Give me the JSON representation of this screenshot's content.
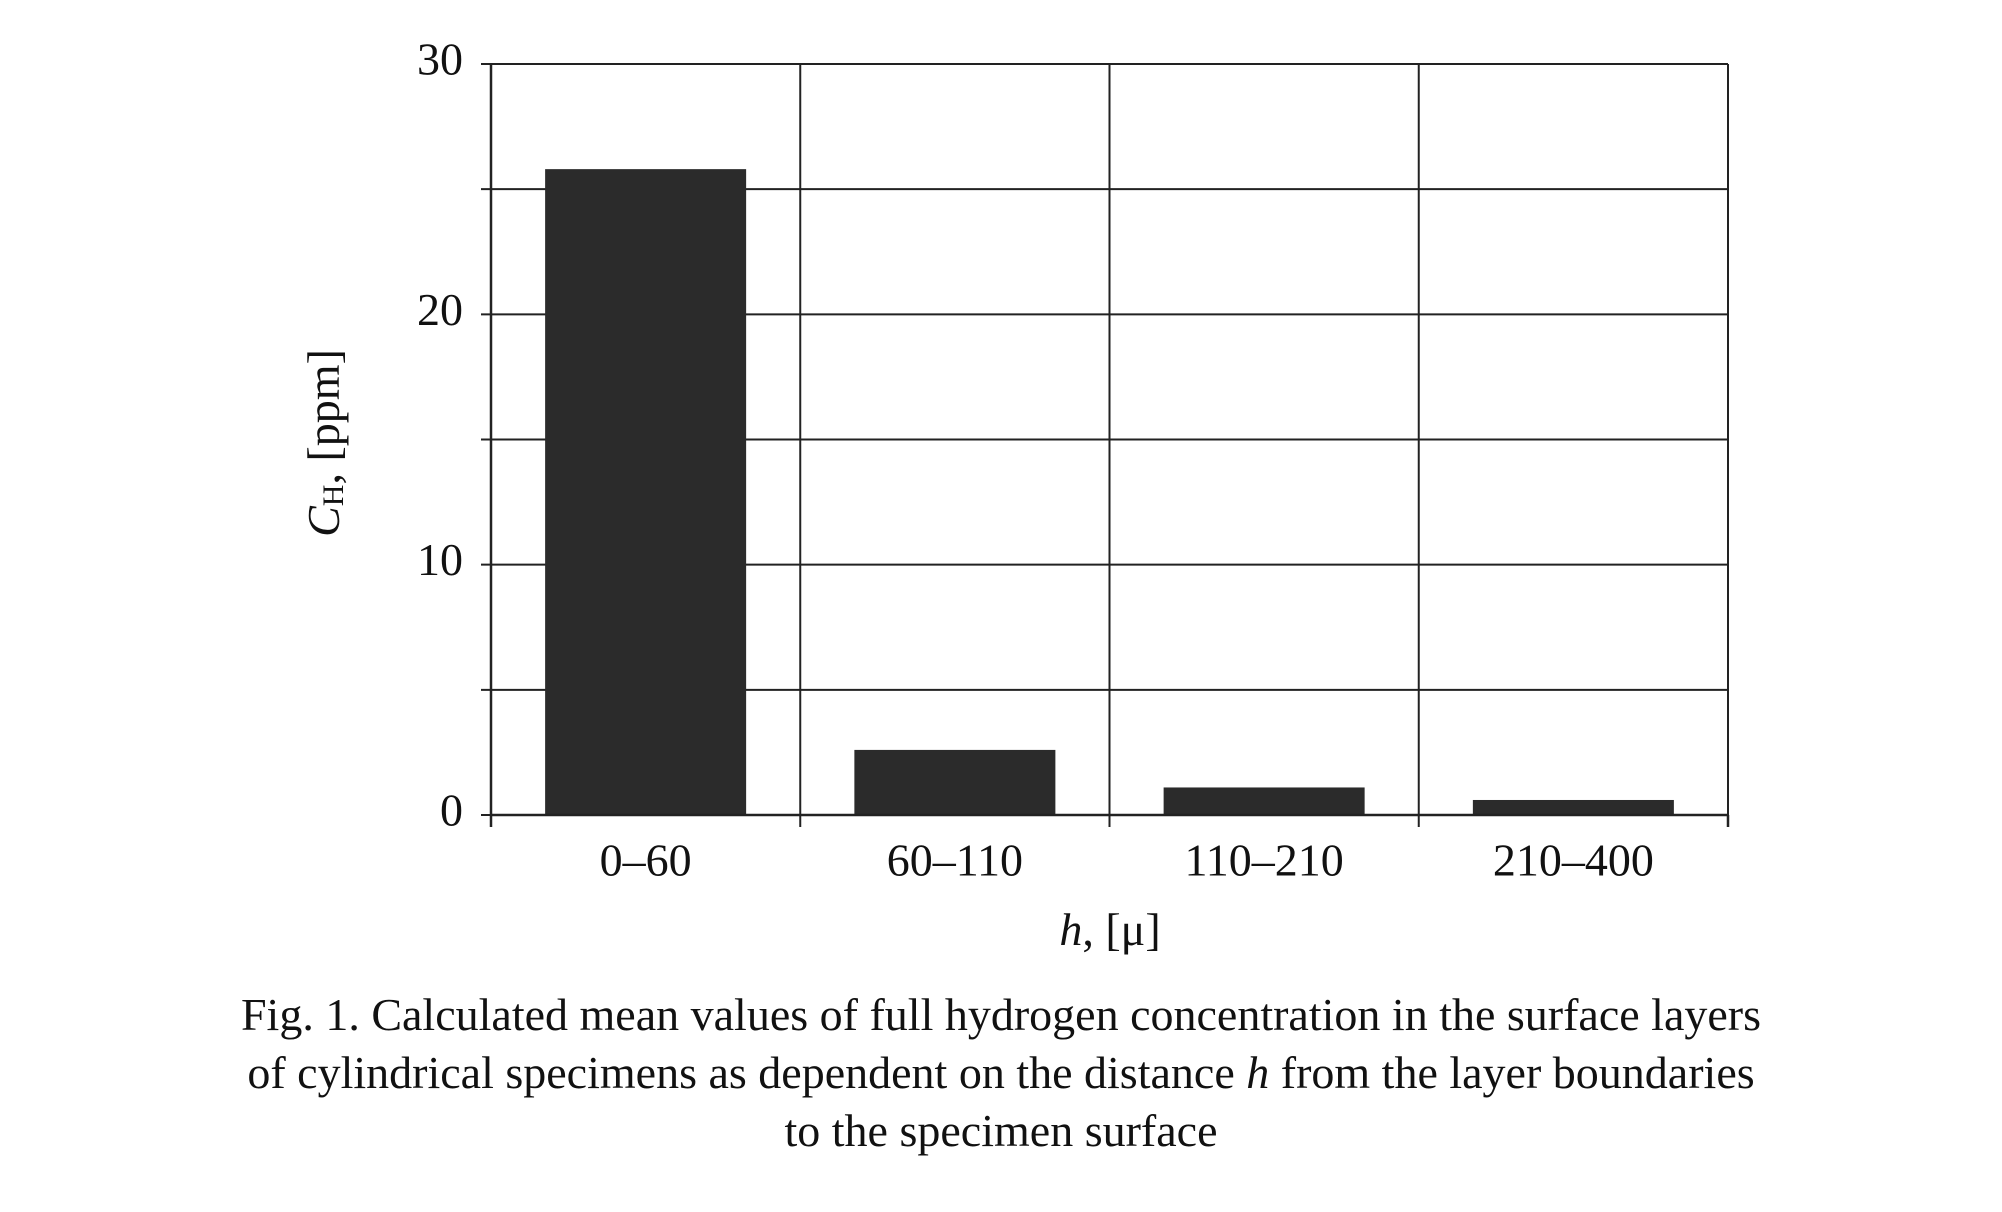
{
  "chart_data": {
    "type": "bar",
    "categories": [
      "0–60",
      "60–110",
      "110–210",
      "210–400"
    ],
    "values": [
      25.8,
      2.6,
      1.1,
      0.6
    ],
    "color": "#2b2b2b",
    "ylim": [
      0,
      30
    ],
    "yticks": [
      0,
      10,
      20,
      30
    ],
    "minor_yticks": [
      5,
      15,
      25
    ],
    "grid": true,
    "ylabel": {
      "symbol": "C",
      "subscript": "H",
      "unit": ", [ppm]"
    },
    "xlabel": {
      "symbol": "h",
      "unit": ", [μ]"
    },
    "caption": [
      [
        "Fig. 1. Calculated mean values of full hydrogen concentration in the surface layers"
      ],
      [
        "of cylindrical specimens as dependent on the distance ",
        "h",
        " from the layer boundaries"
      ],
      [
        "to the specimen surface"
      ]
    ]
  }
}
